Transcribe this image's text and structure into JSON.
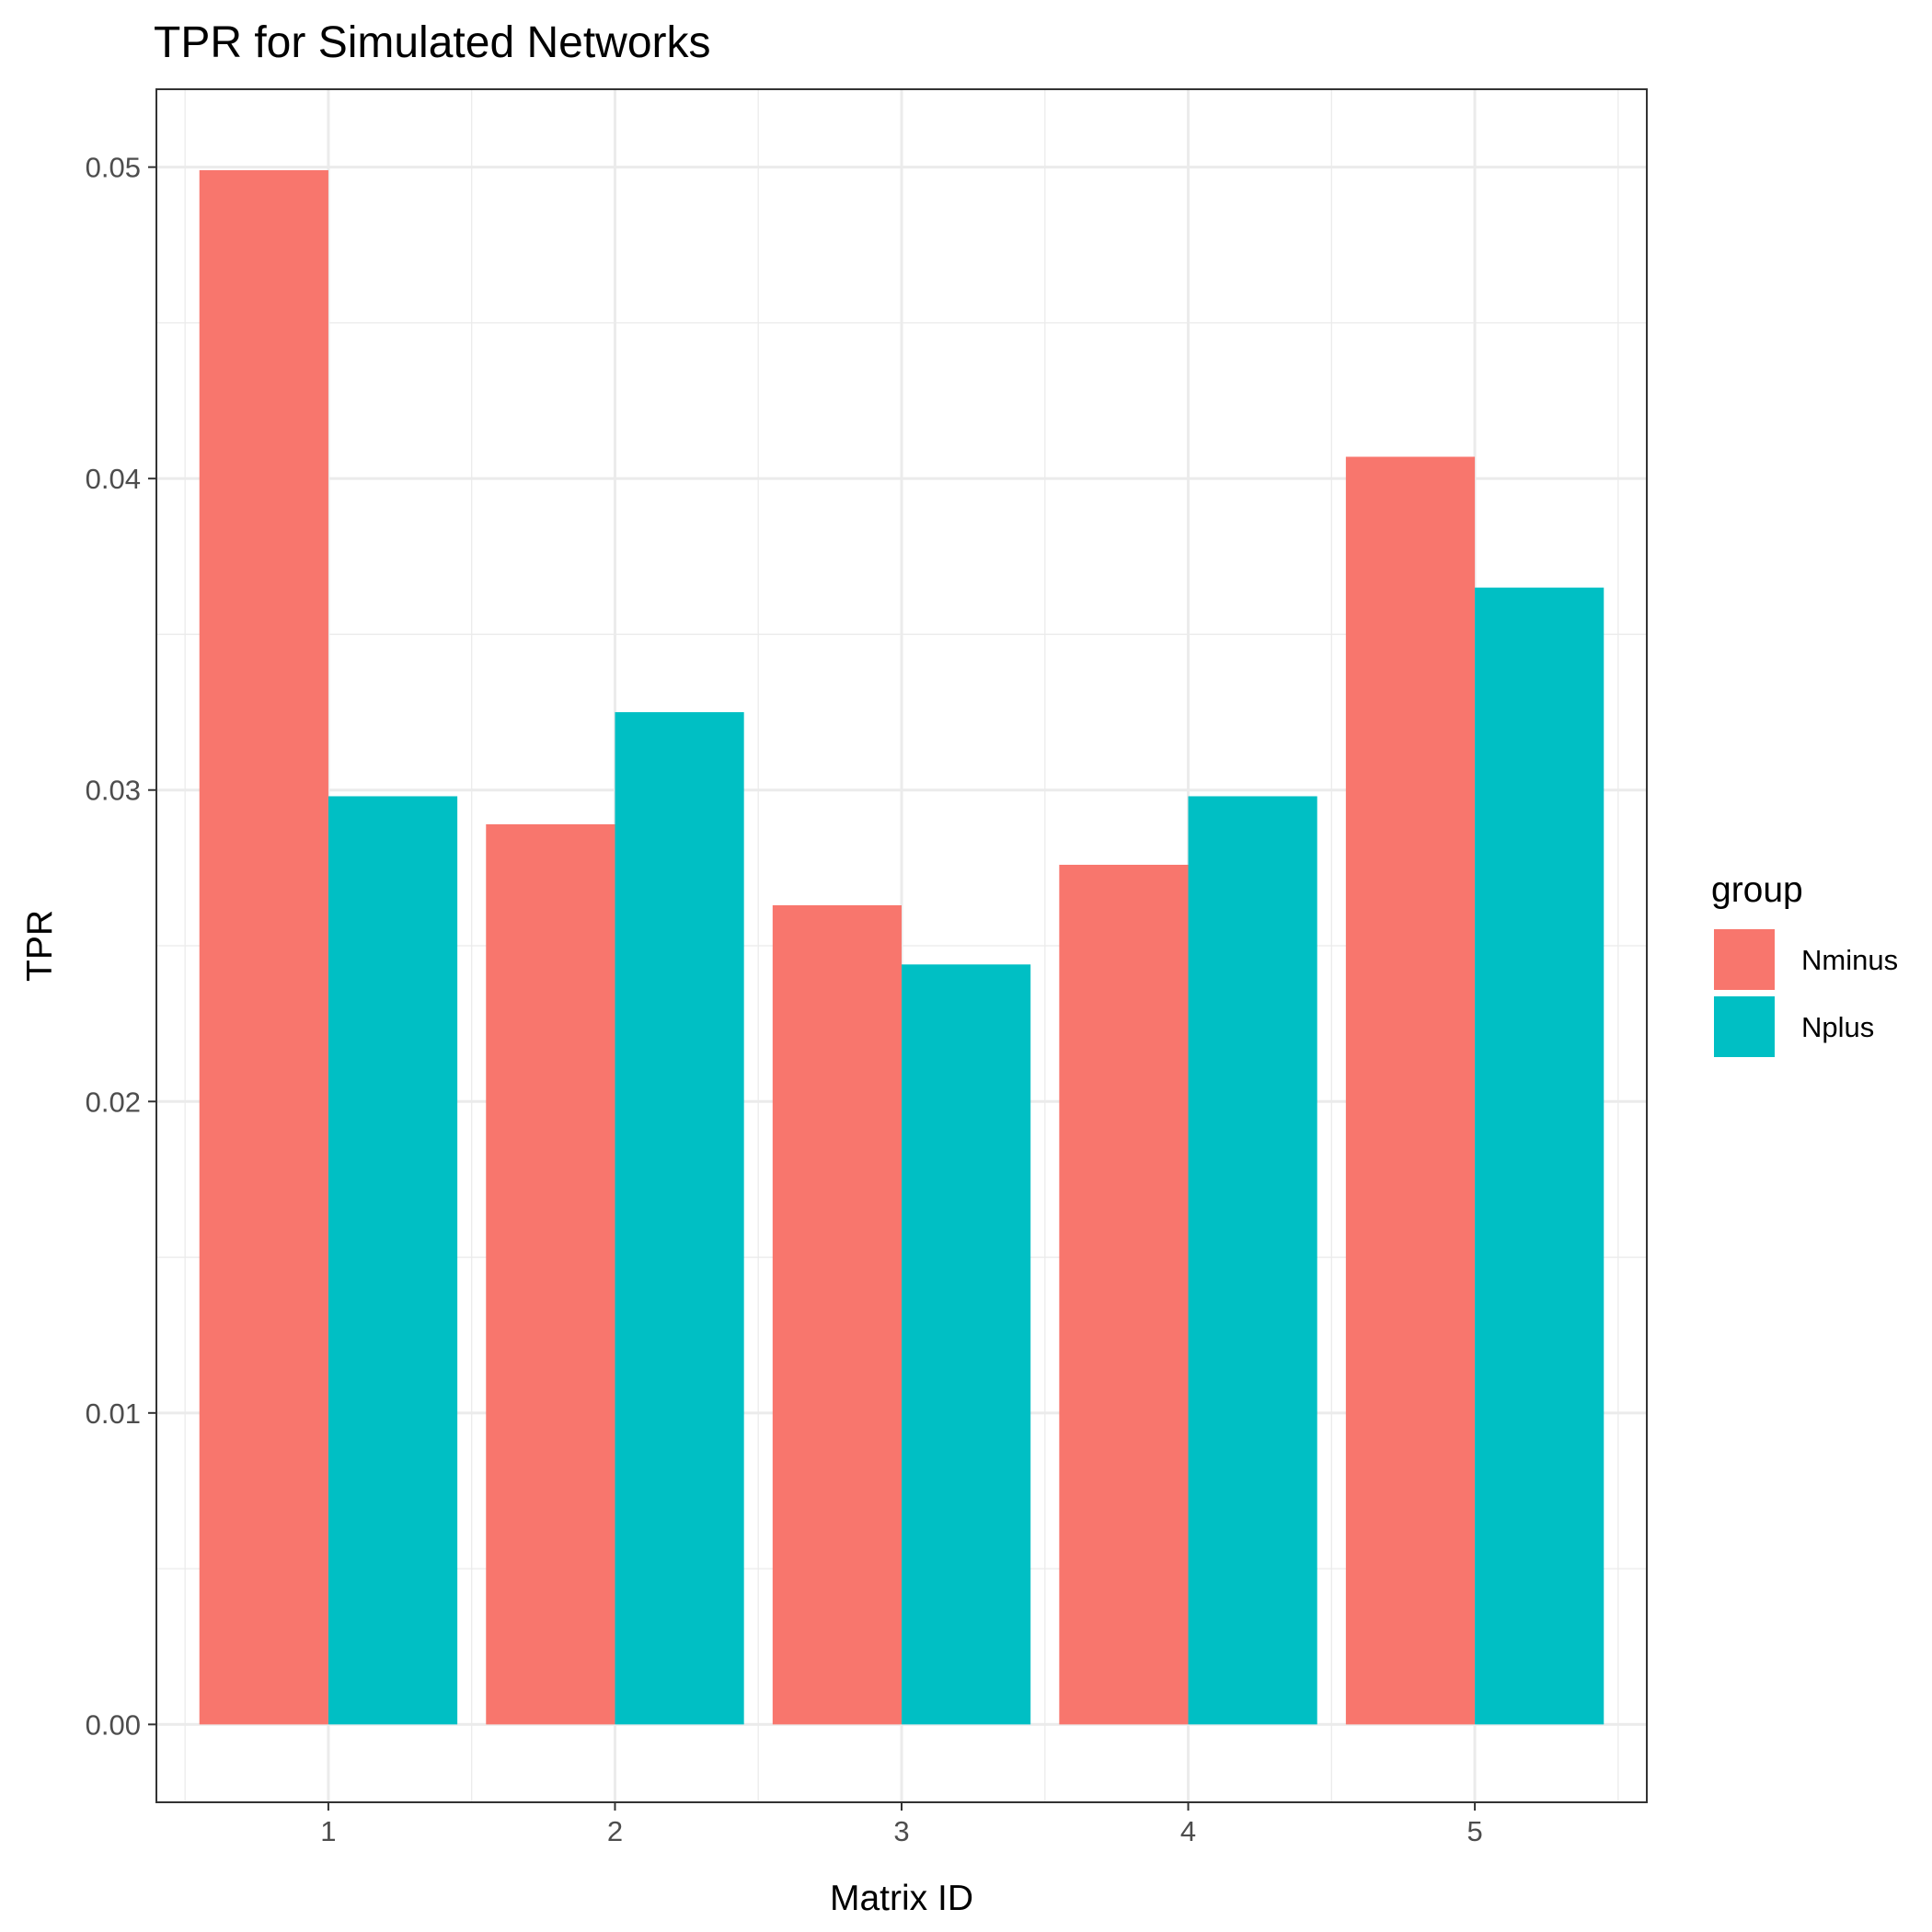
{
  "chart_data": {
    "type": "bar",
    "title": "TPR for Simulated Networks",
    "xlabel": "Matrix ID",
    "ylabel": "TPR",
    "categories": [
      "1",
      "2",
      "3",
      "4",
      "5"
    ],
    "y_ticks": [
      "0.00",
      "0.01",
      "0.02",
      "0.03",
      "0.04",
      "0.05"
    ],
    "ylim": [
      -0.0025,
      0.0525
    ],
    "grid": true,
    "legend": {
      "title": "group",
      "position": "right"
    },
    "series": [
      {
        "name": "Nminus",
        "color": "#F8766D",
        "values": [
          0.0499,
          0.0289,
          0.0263,
          0.0276,
          0.0407
        ]
      },
      {
        "name": "Nplus",
        "color": "#00BFC4",
        "values": [
          0.0298,
          0.0325,
          0.0244,
          0.0298,
          0.0365
        ]
      }
    ]
  }
}
